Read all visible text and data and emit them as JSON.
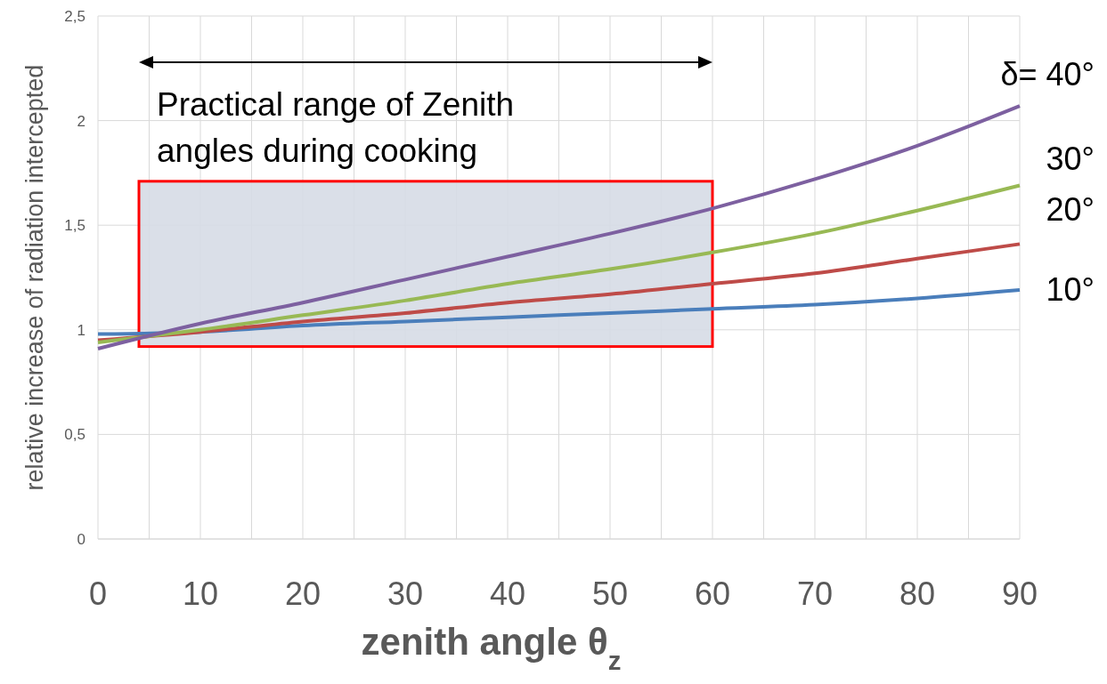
{
  "chart_data": {
    "type": "line",
    "xlabel": "zenith angle θ$_{z}$",
    "ylabel": "relative increase of radiation intercepted",
    "x": [
      0,
      10,
      20,
      30,
      40,
      50,
      60,
      70,
      80,
      90
    ],
    "series": [
      {
        "name": "10°",
        "color": "#4a7ebb",
        "values": [
          0.98,
          0.99,
          1.02,
          1.04,
          1.06,
          1.08,
          1.1,
          1.12,
          1.15,
          1.19
        ]
      },
      {
        "name": "20°",
        "color": "#be4b48",
        "values": [
          0.95,
          0.99,
          1.04,
          1.08,
          1.13,
          1.17,
          1.22,
          1.27,
          1.34,
          1.41
        ]
      },
      {
        "name": "30°",
        "color": "#98b954",
        "values": [
          0.94,
          1.0,
          1.07,
          1.14,
          1.22,
          1.29,
          1.37,
          1.46,
          1.57,
          1.69
        ]
      },
      {
        "name": "δ= 40°",
        "color": "#7d60a0",
        "values": [
          0.91,
          1.03,
          1.13,
          1.24,
          1.35,
          1.46,
          1.58,
          1.72,
          1.88,
          2.07
        ]
      }
    ],
    "xlim": [
      0,
      90
    ],
    "xticks": [
      0,
      {
        "value": 5,
        "label": null
      },
      10,
      {
        "value": 15,
        "label": null
      },
      20,
      {
        "value": 25,
        "label": null
      },
      30,
      {
        "value": 35,
        "label": null
      },
      40,
      {
        "value": 45,
        "label": null
      },
      50,
      {
        "value": 55,
        "label": null
      },
      60,
      {
        "value": 65,
        "label": null
      },
      70,
      {
        "value": 75,
        "label": null
      },
      80,
      {
        "value": 85,
        "label": null
      },
      90
    ],
    "ylim": [
      0,
      2.5
    ],
    "yticks": [
      0,
      {
        "value": 0.5,
        "label": "0,5"
      },
      1,
      {
        "value": 1.5,
        "label": "1,5"
      },
      2,
      {
        "value": 2.5,
        "label": "2,5"
      }
    ],
    "grid": true,
    "marker": "none",
    "line_style": "solid",
    "bands": [
      {
        "axis": "x",
        "from": 4,
        "to": 60,
        "color": "#d6dce5"
      }
    ],
    "annotations": [
      "Practical range of Zenith angles during cooking"
    ]
  }
}
